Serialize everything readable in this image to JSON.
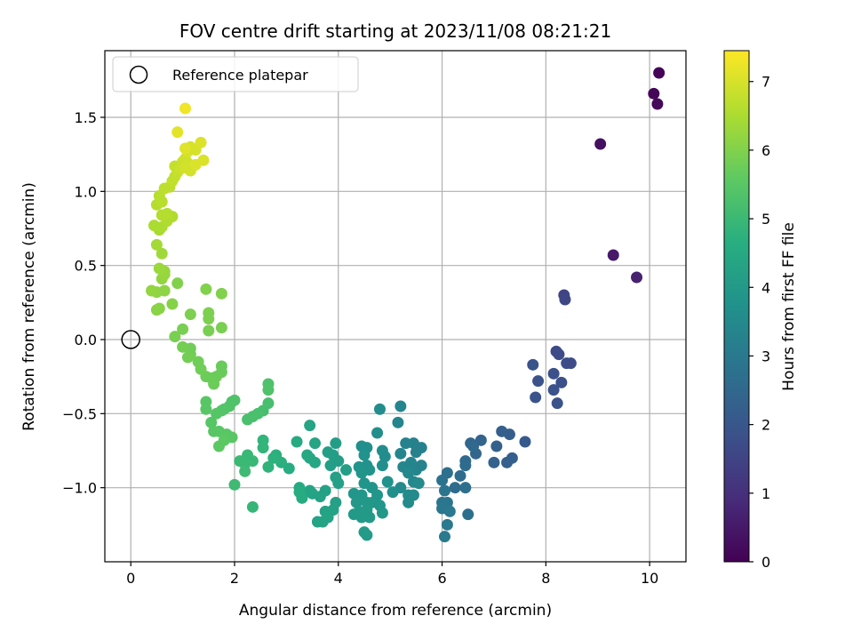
{
  "chart_data": {
    "type": "scatter",
    "title": "FOV centre drift starting at 2023/11/08 08:21:21",
    "xlabel": "Angular distance from reference (arcmin)",
    "ylabel": "Rotation from reference (arcmin)",
    "xlim": [
      -0.5,
      10.7
    ],
    "ylim": [
      -1.5,
      1.95
    ],
    "x_ticks": [
      0,
      2,
      4,
      6,
      8,
      10
    ],
    "x_tick_labels": [
      "0",
      "2",
      "4",
      "6",
      "8",
      "10"
    ],
    "y_ticks": [
      -1.0,
      -0.5,
      0.0,
      0.5,
      1.0,
      1.5
    ],
    "y_tick_labels": [
      "−1.0",
      "−0.5",
      "0.0",
      "0.5",
      "1.0",
      "1.5"
    ],
    "grid": true,
    "colormap": "viridis",
    "colorbar": {
      "label": "Hours from first FF file",
      "range": [
        0,
        7.45
      ],
      "ticks": [
        0,
        1,
        2,
        3,
        4,
        5,
        6,
        7
      ],
      "tick_labels": [
        "0",
        "1",
        "2",
        "3",
        "4",
        "5",
        "6",
        "7"
      ]
    },
    "legend": {
      "position": "upper-left",
      "entries": [
        {
          "label": "Reference platepar",
          "marker": "open-circle"
        }
      ]
    },
    "reference_point": {
      "x": 0,
      "y": 0
    },
    "points": [
      [
        10.18,
        1.8,
        0.05
      ],
      [
        10.08,
        1.66,
        0.1
      ],
      [
        10.15,
        1.59,
        0.15
      ],
      [
        9.05,
        1.32,
        0.3
      ],
      [
        9.3,
        0.57,
        0.5
      ],
      [
        9.75,
        0.42,
        0.7
      ],
      [
        8.35,
        0.3,
        1.5
      ],
      [
        8.37,
        0.27,
        1.55
      ],
      [
        8.2,
        -0.08,
        1.65
      ],
      [
        8.25,
        -0.1,
        1.7
      ],
      [
        7.75,
        -0.17,
        1.9
      ],
      [
        8.4,
        -0.16,
        1.75
      ],
      [
        8.48,
        -0.16,
        1.72
      ],
      [
        8.15,
        -0.23,
        1.8
      ],
      [
        7.85,
        -0.28,
        1.85
      ],
      [
        8.3,
        -0.29,
        1.8
      ],
      [
        8.15,
        -0.34,
        1.85
      ],
      [
        7.8,
        -0.39,
        1.9
      ],
      [
        8.22,
        -0.43,
        1.88
      ],
      [
        7.6,
        -0.69,
        2.1
      ],
      [
        7.3,
        -0.64,
        2.2
      ],
      [
        7.15,
        -0.62,
        2.25
      ],
      [
        7.35,
        -0.8,
        2.2
      ],
      [
        7.25,
        -0.83,
        2.25
      ],
      [
        7.05,
        -0.72,
        2.3
      ],
      [
        7.0,
        -0.83,
        2.35
      ],
      [
        6.75,
        -0.68,
        2.4
      ],
      [
        6.55,
        -0.7,
        2.45
      ],
      [
        6.65,
        -0.77,
        2.45
      ],
      [
        6.6,
        -0.72,
        2.5
      ],
      [
        6.45,
        -0.82,
        2.55
      ],
      [
        6.45,
        -0.85,
        2.6
      ],
      [
        6.35,
        -0.92,
        2.6
      ],
      [
        6.25,
        -1.0,
        2.6
      ],
      [
        6.45,
        -1.0,
        2.7
      ],
      [
        6.1,
        -0.9,
        2.75
      ],
      [
        6.0,
        -0.95,
        2.8
      ],
      [
        6.05,
        -1.02,
        2.85
      ],
      [
        6.0,
        -1.1,
        2.85
      ],
      [
        6.1,
        -1.1,
        2.9
      ],
      [
        6.0,
        -1.14,
        2.95
      ],
      [
        6.15,
        -1.16,
        3.0
      ],
      [
        6.1,
        -1.25,
        3.0
      ],
      [
        6.5,
        -1.18,
        2.75
      ],
      [
        6.05,
        -1.33,
        3.05
      ],
      [
        5.6,
        -0.73,
        3.2
      ],
      [
        5.45,
        -0.7,
        3.25
      ],
      [
        5.5,
        -0.76,
        3.25
      ],
      [
        5.3,
        -0.7,
        3.3
      ],
      [
        5.2,
        -0.45,
        3.35
      ],
      [
        5.15,
        -0.56,
        3.35
      ],
      [
        5.2,
        -0.77,
        3.35
      ],
      [
        5.25,
        -0.86,
        3.4
      ],
      [
        5.4,
        -0.83,
        3.35
      ],
      [
        5.5,
        -0.88,
        3.35
      ],
      [
        5.6,
        -0.85,
        3.3
      ],
      [
        5.35,
        -0.9,
        3.45
      ],
      [
        5.45,
        -0.96,
        3.45
      ],
      [
        5.55,
        -0.97,
        3.5
      ],
      [
        5.2,
        -1.0,
        3.5
      ],
      [
        5.35,
        -1.05,
        3.55
      ],
      [
        5.45,
        -1.05,
        3.5
      ],
      [
        5.35,
        -1.1,
        3.55
      ],
      [
        4.85,
        -0.75,
        3.6
      ],
      [
        4.9,
        -0.79,
        3.6
      ],
      [
        4.75,
        -0.63,
        3.65
      ],
      [
        4.8,
        -0.47,
        3.6
      ],
      [
        4.85,
        -0.85,
        3.65
      ],
      [
        4.55,
        -0.73,
        3.7
      ],
      [
        4.45,
        -0.72,
        3.7
      ],
      [
        4.5,
        -0.78,
        3.75
      ],
      [
        4.55,
        -0.85,
        3.75
      ],
      [
        4.4,
        -0.86,
        3.8
      ],
      [
        4.6,
        -0.88,
        3.8
      ],
      [
        4.45,
        -0.9,
        3.85
      ],
      [
        4.5,
        -0.97,
        3.85
      ],
      [
        4.65,
        -1.0,
        3.85
      ],
      [
        4.95,
        -0.96,
        3.75
      ],
      [
        5.05,
        -1.03,
        3.7
      ],
      [
        4.3,
        -1.04,
        3.9
      ],
      [
        4.45,
        -1.05,
        3.9
      ],
      [
        4.35,
        -1.1,
        3.95
      ],
      [
        4.55,
        -1.1,
        3.95
      ],
      [
        4.65,
        -1.1,
        3.95
      ],
      [
        4.75,
        -1.05,
        3.9
      ],
      [
        4.8,
        -1.12,
        3.9
      ],
      [
        4.4,
        -1.16,
        4.0
      ],
      [
        4.55,
        -1.15,
        4.0
      ],
      [
        4.6,
        -1.2,
        4.0
      ],
      [
        4.45,
        -1.2,
        4.0
      ],
      [
        4.3,
        -1.18,
        4.0
      ],
      [
        4.85,
        -1.17,
        3.95
      ],
      [
        4.5,
        -1.3,
        4.05
      ],
      [
        4.55,
        -1.32,
        4.05
      ],
      [
        3.95,
        -0.7,
        4.1
      ],
      [
        3.8,
        -0.76,
        4.15
      ],
      [
        3.9,
        -0.78,
        4.15
      ],
      [
        3.85,
        -0.85,
        4.15
      ],
      [
        4.0,
        -0.82,
        4.1
      ],
      [
        4.15,
        -0.88,
        4.15
      ],
      [
        3.95,
        -0.93,
        4.2
      ],
      [
        4.0,
        -0.97,
        4.2
      ],
      [
        3.75,
        -1.02,
        4.25
      ],
      [
        3.65,
        -1.06,
        4.25
      ],
      [
        3.95,
        -1.1,
        4.2
      ],
      [
        3.9,
        -1.15,
        4.25
      ],
      [
        3.75,
        -1.16,
        4.25
      ],
      [
        3.8,
        -1.2,
        4.3
      ],
      [
        3.7,
        -1.23,
        4.3
      ],
      [
        3.6,
        -1.23,
        4.3
      ],
      [
        3.5,
        -1.04,
        4.3
      ],
      [
        3.45,
        -1.02,
        4.3
      ],
      [
        3.55,
        -0.7,
        4.35
      ],
      [
        3.45,
        -0.58,
        4.35
      ],
      [
        3.45,
        -0.8,
        4.4
      ],
      [
        3.55,
        -0.83,
        4.4
      ],
      [
        3.4,
        -0.78,
        4.45
      ],
      [
        3.2,
        -0.69,
        4.5
      ],
      [
        3.25,
        -1.0,
        4.5
      ],
      [
        3.25,
        -1.03,
        4.55
      ],
      [
        3.3,
        -1.07,
        4.55
      ],
      [
        3.05,
        -0.87,
        4.6
      ],
      [
        2.8,
        -0.78,
        4.7
      ],
      [
        2.9,
        -0.83,
        4.7
      ],
      [
        2.75,
        -0.8,
        4.75
      ],
      [
        2.65,
        -0.86,
        4.8
      ],
      [
        2.55,
        -0.73,
        4.85
      ],
      [
        2.55,
        -0.68,
        4.85
      ],
      [
        2.35,
        -1.13,
        4.9
      ],
      [
        2.25,
        -0.78,
        4.95
      ],
      [
        2.35,
        -0.82,
        4.95
      ],
      [
        2.1,
        -0.82,
        5.0
      ],
      [
        2.2,
        -0.84,
        5.0
      ],
      [
        2.2,
        -0.89,
        5.05
      ],
      [
        2.0,
        -0.98,
        5.05
      ],
      [
        2.65,
        -0.43,
        5.2
      ],
      [
        2.55,
        -0.48,
        5.2
      ],
      [
        2.45,
        -0.5,
        5.25
      ],
      [
        2.35,
        -0.52,
        5.25
      ],
      [
        2.25,
        -0.54,
        5.25
      ],
      [
        2.65,
        -0.3,
        5.3
      ],
      [
        2.65,
        -0.34,
        5.35
      ],
      [
        2.0,
        -0.41,
        5.35
      ],
      [
        1.95,
        -0.42,
        5.35
      ],
      [
        1.9,
        -0.45,
        5.35
      ],
      [
        1.8,
        -0.47,
        5.4
      ],
      [
        1.75,
        -0.48,
        5.4
      ],
      [
        1.65,
        -0.5,
        5.45
      ],
      [
        1.55,
        -0.56,
        5.45
      ],
      [
        1.6,
        -0.62,
        5.5
      ],
      [
        1.7,
        -0.62,
        5.5
      ],
      [
        1.85,
        -0.64,
        5.5
      ],
      [
        1.95,
        -0.66,
        5.5
      ],
      [
        1.8,
        -0.68,
        5.55
      ],
      [
        1.7,
        -0.72,
        5.55
      ],
      [
        1.45,
        -0.47,
        5.5
      ],
      [
        1.45,
        -0.42,
        5.5
      ],
      [
        1.75,
        -0.18,
        5.7
      ],
      [
        1.75,
        -0.22,
        5.7
      ],
      [
        1.65,
        -0.25,
        5.75
      ],
      [
        1.55,
        -0.26,
        5.75
      ],
      [
        1.45,
        -0.25,
        5.75
      ],
      [
        1.6,
        -0.3,
        5.75
      ],
      [
        1.35,
        -0.2,
        5.8
      ],
      [
        1.3,
        -0.15,
        5.8
      ],
      [
        1.15,
        -0.1,
        5.8
      ],
      [
        1.15,
        -0.06,
        5.8
      ],
      [
        1.1,
        -0.12,
        5.85
      ],
      [
        1.0,
        -0.05,
        5.85
      ],
      [
        0.85,
        0.02,
        5.9
      ],
      [
        1.0,
        0.07,
        5.9
      ],
      [
        1.75,
        0.08,
        5.9
      ],
      [
        1.5,
        0.06,
        5.9
      ],
      [
        1.5,
        0.14,
        5.95
      ],
      [
        1.5,
        0.18,
        5.95
      ],
      [
        1.15,
        0.17,
        5.95
      ],
      [
        1.75,
        0.31,
        6.0
      ],
      [
        1.45,
        0.34,
        6.0
      ],
      [
        0.9,
        0.38,
        6.0
      ],
      [
        0.8,
        0.24,
        6.05
      ],
      [
        0.55,
        0.21,
        6.1
      ],
      [
        0.5,
        0.2,
        6.1
      ],
      [
        0.5,
        0.32,
        6.15
      ],
      [
        0.4,
        0.33,
        6.2
      ],
      [
        0.65,
        0.33,
        6.15
      ],
      [
        0.6,
        0.41,
        6.2
      ],
      [
        0.65,
        0.44,
        6.25
      ],
      [
        0.65,
        0.46,
        6.25
      ],
      [
        0.55,
        0.48,
        6.3
      ],
      [
        0.6,
        0.58,
        6.35
      ],
      [
        0.5,
        0.64,
        6.4
      ],
      [
        0.55,
        0.74,
        6.45
      ],
      [
        0.45,
        0.77,
        6.5
      ],
      [
        0.6,
        0.76,
        6.5
      ],
      [
        0.7,
        0.8,
        6.55
      ],
      [
        0.8,
        0.83,
        6.55
      ],
      [
        0.7,
        0.85,
        6.6
      ],
      [
        0.6,
        0.84,
        6.6
      ],
      [
        0.5,
        0.91,
        6.6
      ],
      [
        0.6,
        0.93,
        6.65
      ],
      [
        0.55,
        0.97,
        6.65
      ],
      [
        0.65,
        1.02,
        6.7
      ],
      [
        0.75,
        1.03,
        6.7
      ],
      [
        0.8,
        1.07,
        6.75
      ],
      [
        0.85,
        1.1,
        6.75
      ],
      [
        0.9,
        1.13,
        6.8
      ],
      [
        0.85,
        1.17,
        6.8
      ],
      [
        0.95,
        1.15,
        6.85
      ],
      [
        1.0,
        1.2,
        6.85
      ],
      [
        1.05,
        1.22,
        6.9
      ],
      [
        1.1,
        1.19,
        6.9
      ],
      [
        1.2,
        1.17,
        6.95
      ],
      [
        1.15,
        1.14,
        6.95
      ],
      [
        1.05,
        1.16,
        6.95
      ],
      [
        1.1,
        1.27,
        7.0
      ],
      [
        1.15,
        1.3,
        7.0
      ],
      [
        1.25,
        1.28,
        7.0
      ],
      [
        1.35,
        1.33,
        7.05
      ],
      [
        1.4,
        1.21,
        7.05
      ],
      [
        1.25,
        1.18,
        7.05
      ],
      [
        1.05,
        1.29,
        7.1
      ],
      [
        0.9,
        1.4,
        7.15
      ],
      [
        1.05,
        1.56,
        7.3
      ]
    ]
  }
}
